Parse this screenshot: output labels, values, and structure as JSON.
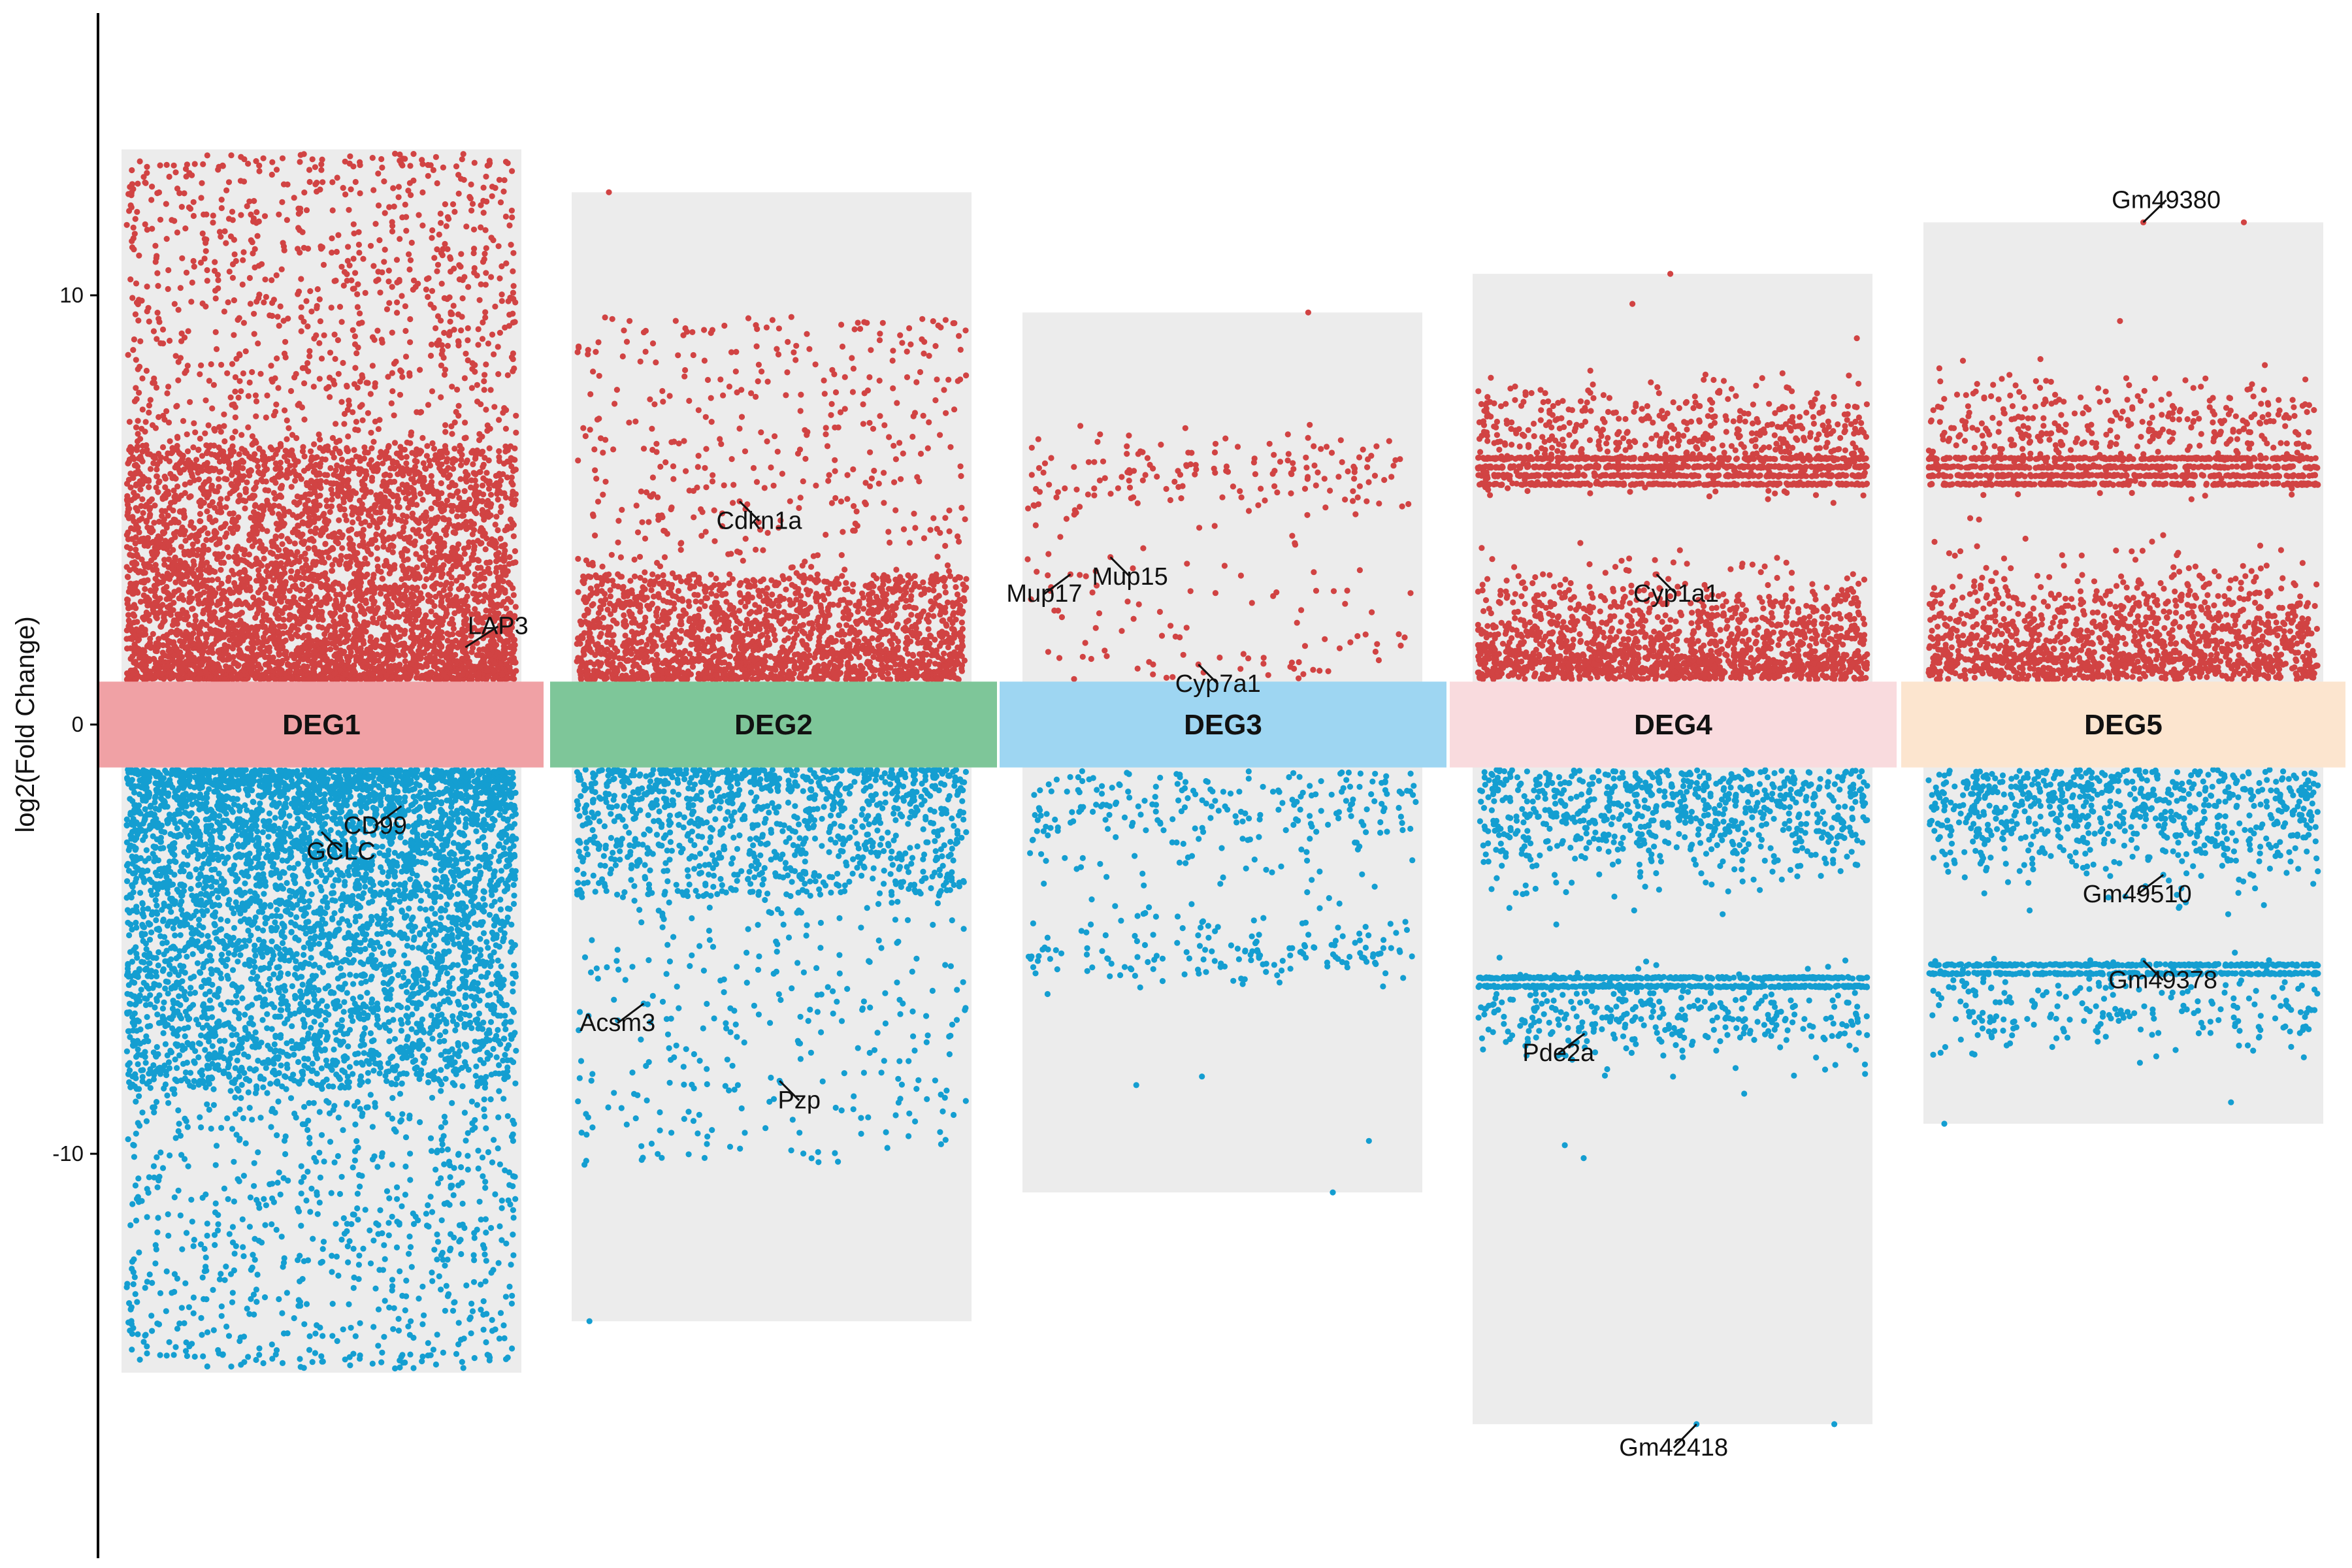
{
  "colors": {
    "up": "#d14343",
    "down": "#149ed1",
    "panel_bg": "#ececec",
    "axis": "#000000",
    "leader": "#111111"
  },
  "chart_data": {
    "type": "scatter",
    "subtype": "multi-group jitter volcano",
    "title": "",
    "xlabel": "",
    "ylabel": "log2(Fold Change)",
    "ylim": [
      -19,
      16.5
    ],
    "yticks": [
      10,
      0,
      -10
    ],
    "ytick_labels": [
      "10",
      "0",
      "-10"
    ],
    "grid": false,
    "legend": "none",
    "center_band": [
      -1,
      1
    ],
    "groups": [
      {
        "name": "DEG1",
        "band_color": "#f0a1a5",
        "range": [
          -15.1,
          13.4
        ],
        "up": {
          "n": 5200,
          "dense_max": 6.5,
          "dense_frac": 0.7,
          "sparse_max": 13.3
        },
        "down": {
          "n": 5200,
          "dense_min": -8.5,
          "dense_frac": 0.7,
          "sparse_min": -15.0
        },
        "labels": [
          {
            "gene": "LAP3",
            "y": 1.8,
            "jx": 0.86
          },
          {
            "gene": "CD99",
            "y": -1.9,
            "jx": 0.7
          },
          {
            "gene": "GCLC",
            "y": -2.5,
            "jx": 0.5
          }
        ]
      },
      {
        "name": "DEG2",
        "band_color": "#7ec699",
        "range": [
          -13.9,
          12.4
        ],
        "up": {
          "n": 2300,
          "dense_max": 3.5,
          "dense_frac": 0.75,
          "sparse_max": 9.5,
          "extremes": [
            12.4
          ]
        },
        "down": {
          "n": 1400,
          "dense_min": -4.0,
          "dense_frac": 0.7,
          "sparse_min": -10.3,
          "extremes": [
            -13.9
          ]
        },
        "labels": [
          {
            "gene": "Cdkn1a",
            "y": 5.2,
            "jx": 0.42
          },
          {
            "gene": "Acsm3",
            "y": -6.5,
            "jx": 0.18
          },
          {
            "gene": "Pzp",
            "y": -8.3,
            "jx": 0.52
          }
        ]
      },
      {
        "name": "DEG3",
        "band_color": "#9ed6f2",
        "range": [
          -10.9,
          9.6
        ],
        "up": {
          "n": 260,
          "clusters": [
            [
              5.8,
              0.5,
              0.6
            ],
            [
              2.5,
              1.4,
              0.4
            ]
          ],
          "extremes": [
            9.6
          ]
        },
        "down": {
          "n": 420,
          "clusters": [
            [
              -1.8,
              0.6,
              0.5
            ],
            [
              -5.3,
              0.35,
              0.4
            ],
            [
              -3.2,
              0.6,
              0.1
            ]
          ],
          "extremes": [
            -8.2,
            -8.4,
            -9.7,
            -10.9
          ]
        },
        "labels": [
          {
            "gene": "Mup15",
            "y": 3.9,
            "jx": 0.22
          },
          {
            "gene": "Mup17",
            "y": 3.5,
            "jx": 0.12
          },
          {
            "gene": "Cyp7a1",
            "y": 1.4,
            "jx": 0.44
          }
        ]
      },
      {
        "name": "DEG4",
        "band_color": "#f9dbde",
        "range": [
          -16.3,
          10.5
        ],
        "up": {
          "n": 3000,
          "rows": [
            5.6,
            5.8,
            6.0,
            6.2
          ],
          "row_frac": 0.3,
          "clusters": [
            [
              6.7,
              0.6,
              0.18
            ],
            [
              1.6,
              0.9,
              0.5
            ]
          ],
          "extremes": [
            10.5,
            9.8,
            9.0
          ]
        },
        "down": {
          "n": 1700,
          "rows": [
            -5.9,
            -6.1
          ],
          "row_frac": 0.35,
          "clusters": [
            [
              -2.0,
              0.8,
              0.45
            ],
            [
              -6.8,
              0.5,
              0.2
            ]
          ],
          "extremes": [
            -8.6,
            -9.8,
            -10.1,
            -16.3
          ]
        },
        "labels": [
          {
            "gene": "Cyp1a1",
            "y": 3.5,
            "jx": 0.46
          },
          {
            "gene": "Pde2a",
            "y": -7.2,
            "jx": 0.28
          },
          {
            "gene": "Gm42418",
            "y": -16.3,
            "jx": 0.56
          }
        ]
      },
      {
        "name": "DEG5",
        "band_color": "#fce5cf",
        "range": [
          -9.3,
          11.7
        ],
        "up": {
          "n": 2600,
          "rows": [
            5.6,
            5.8,
            6.0,
            6.2
          ],
          "row_frac": 0.35,
          "clusters": [
            [
              6.8,
              0.6,
              0.15
            ],
            [
              1.8,
              0.9,
              0.5
            ]
          ],
          "extremes": [
            11.7,
            9.4,
            8.3
          ]
        },
        "down": {
          "n": 1500,
          "rows": [
            -5.6,
            -5.8
          ],
          "row_frac": 0.35,
          "clusters": [
            [
              -2.0,
              0.8,
              0.5
            ],
            [
              -6.6,
              0.5,
              0.15
            ]
          ],
          "extremes": [
            -8.8,
            -9.3
          ]
        },
        "labels": [
          {
            "gene": "Gm49380",
            "y": 11.7,
            "jx": 0.55
          },
          {
            "gene": "Gm49510",
            "y": -3.5,
            "jx": 0.6
          },
          {
            "gene": "Gm49378",
            "y": -5.5,
            "jx": 0.55
          }
        ]
      }
    ]
  }
}
